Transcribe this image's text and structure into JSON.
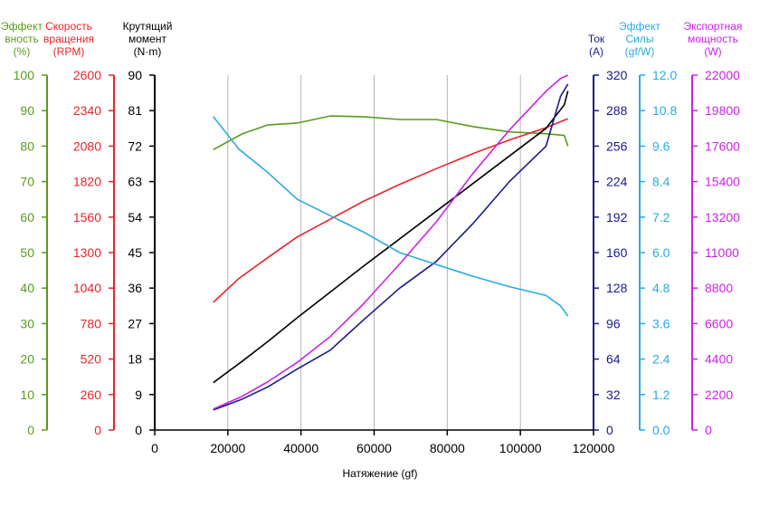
{
  "chart_data": {
    "type": "line",
    "xlabel": "Натяжение (gf)",
    "x_ticks": [
      0,
      20000,
      40000,
      60000,
      80000,
      100000,
      120000
    ],
    "xlim": [
      0,
      120000
    ],
    "grid": "vertical",
    "axes": [
      {
        "id": "eff",
        "side": "left",
        "title": [
          "Эффект",
          "вность",
          "(%)"
        ],
        "color": "#5a9a1e",
        "ylim": [
          0,
          100
        ],
        "ticks": [
          "0",
          "10",
          "20",
          "30",
          "40",
          "50",
          "60",
          "70",
          "80",
          "90",
          "100"
        ]
      },
      {
        "id": "rpm",
        "side": "left",
        "title": [
          "Скорость",
          "вращения",
          "(RPM)"
        ],
        "color": "#e8242a",
        "ylim": [
          0,
          2600
        ],
        "ticks": [
          "0",
          "260",
          "520",
          "780",
          "1040",
          "1300",
          "1560",
          "1820",
          "2080",
          "2340",
          "2600"
        ]
      },
      {
        "id": "torque",
        "side": "left",
        "title": [
          "Крутящий",
          "момент",
          "(N·m)"
        ],
        "color": "#000000",
        "ylim": [
          0,
          90
        ],
        "ticks": [
          "0",
          "9",
          "18",
          "27",
          "36",
          "45",
          "54",
          "63",
          "72",
          "81",
          "90"
        ]
      },
      {
        "id": "current",
        "side": "right",
        "title": [
          "Ток",
          "(A)"
        ],
        "color": "#1a1a8c",
        "ylim": [
          0,
          320
        ],
        "ticks": [
          "0",
          "32",
          "64",
          "96",
          "128",
          "160",
          "192",
          "224",
          "256",
          "288",
          "320"
        ]
      },
      {
        "id": "force_eff",
        "side": "right",
        "title": [
          "Эффект",
          "Силы",
          "(gf/W)"
        ],
        "color": "#2aaae2",
        "ylim": [
          0,
          12
        ],
        "ticks": [
          "0.0",
          "1.2",
          "2.4",
          "3.6",
          "4.8",
          "6.0",
          "7.2",
          "8.4",
          "9.6",
          "10.8",
          "12.0"
        ]
      },
      {
        "id": "power",
        "side": "right",
        "title": [
          "Экспортная",
          "мощность",
          "(W)"
        ],
        "color": "#cc22e6",
        "ylim": [
          0,
          22000
        ],
        "ticks": [
          "0",
          "2200",
          "4400",
          "6600",
          "8800",
          "11000",
          "13200",
          "15400",
          "17600",
          "19800",
          "22000"
        ]
      }
    ],
    "series": [
      {
        "axis": "eff",
        "color": "#5a9a1e",
        "x": [
          16000,
          24000,
          31000,
          39000,
          48000,
          57000,
          67000,
          77000,
          87000,
          97000,
          107000,
          112000,
          113000
        ],
        "y": [
          79,
          83.5,
          86,
          86.5,
          88.5,
          88.3,
          87.5,
          87.5,
          85.5,
          84,
          83.5,
          83,
          80
        ]
      },
      {
        "axis": "rpm",
        "color": "#e8242a",
        "x": [
          16000,
          23000,
          31000,
          39000,
          48000,
          57000,
          67000,
          77000,
          87000,
          97000,
          107000,
          112000,
          113000
        ],
        "y": [
          935,
          1110,
          1265,
          1415,
          1545,
          1675,
          1800,
          1915,
          2025,
          2125,
          2215,
          2270,
          2280
        ]
      },
      {
        "axis": "torque",
        "color": "#000000",
        "x": [
          16000,
          24000,
          31000,
          39000,
          48000,
          57000,
          67000,
          77000,
          87000,
          97000,
          107000,
          112000,
          113000
        ],
        "y": [
          12,
          17.5,
          22.5,
          28.5,
          35,
          41.5,
          48.5,
          55.5,
          62.5,
          69.5,
          76.5,
          82.5,
          86
        ]
      },
      {
        "axis": "current",
        "color": "#1a1a8c",
        "x": [
          16000,
          24000,
          31000,
          39000,
          48000,
          57000,
          67000,
          77000,
          87000,
          97000,
          107000,
          111000,
          113000
        ],
        "y": [
          18,
          28,
          39,
          55,
          72,
          99,
          128,
          152,
          186,
          224,
          256,
          301,
          312
        ]
      },
      {
        "axis": "force_eff",
        "color": "#2aaae2",
        "x": [
          16000,
          23000,
          31000,
          39000,
          48000,
          57000,
          67000,
          77000,
          87000,
          97000,
          107000,
          111000,
          113000
        ],
        "y": [
          10.6,
          9.5,
          8.7,
          7.8,
          7.25,
          6.7,
          6.0,
          5.6,
          5.2,
          4.85,
          4.55,
          4.2,
          3.85
        ]
      },
      {
        "axis": "power",
        "color": "#cc22e6",
        "x": [
          16000,
          24000,
          31000,
          39000,
          48000,
          57000,
          67000,
          77000,
          87000,
          97000,
          107000,
          111000,
          113000
        ],
        "y": [
          1300,
          2100,
          3000,
          4200,
          5800,
          7800,
          10300,
          12900,
          15900,
          18600,
          21000,
          21800,
          22000
        ]
      }
    ]
  }
}
